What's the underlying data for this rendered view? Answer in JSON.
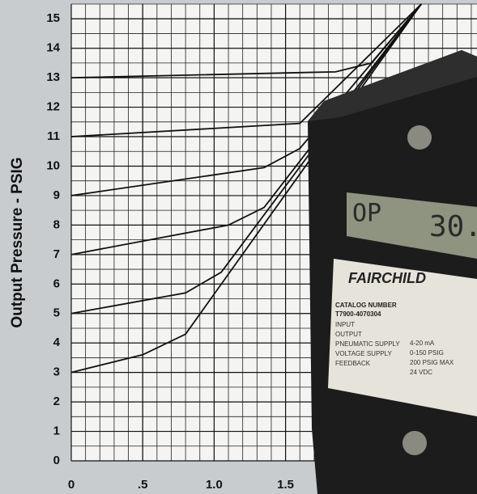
{
  "chart_data": {
    "type": "line",
    "y_label": "Output Pressure - PSIG",
    "xlim": [
      0,
      2.84
    ],
    "ylim": [
      0,
      15.5
    ],
    "xticks": [
      0,
      {
        "value": 0.5,
        "label": ".5"
      },
      {
        "value": 1,
        "label": "1.0"
      },
      {
        "value": 1.5,
        "label": "1.5"
      }
    ],
    "yticks": [
      0,
      1,
      2,
      3,
      4,
      5,
      6,
      7,
      8,
      9,
      10,
      11,
      12,
      13,
      14,
      15
    ],
    "grid": true,
    "x_minor_step": 0.1,
    "y_minor_step": 0.5,
    "series": [
      {
        "color": "#111111",
        "x": [
          0,
          1.85,
          2.1,
          2.45
        ],
        "values": [
          13,
          13.2,
          13.5,
          15.5
        ]
      },
      {
        "color": "#111111",
        "x": [
          0,
          1.6,
          2.45
        ],
        "values": [
          11,
          11.45,
          15.5
        ]
      },
      {
        "color": "#111111",
        "x": [
          0,
          1.35,
          1.6,
          2.45
        ],
        "values": [
          9,
          9.95,
          10.6,
          15.5
        ]
      },
      {
        "color": "#111111",
        "x": [
          0,
          1.1,
          1.35,
          2.45
        ],
        "values": [
          7,
          8,
          8.6,
          15.5
        ]
      },
      {
        "color": "#111111",
        "x": [
          0,
          0.8,
          1.05,
          2.45
        ],
        "values": [
          5,
          5.7,
          6.4,
          15.5
        ]
      },
      {
        "color": "#111111",
        "x": [
          0,
          0.5,
          0.8,
          2.45
        ],
        "values": [
          3,
          3.6,
          4.3,
          15.5
        ]
      }
    ]
  },
  "device": {
    "display": [
      "OP",
      "30."
    ],
    "brand": "FAIRCHILD",
    "catalog_title": "CATALOG NUMBER",
    "catalog_number": "T7900-4070304",
    "specs": [
      [
        "INPUT",
        ""
      ],
      [
        "OUTPUT",
        "4-20 mA"
      ],
      [
        "PNEUMATIC SUPPLY",
        "0-150 PSIG"
      ],
      [
        "VOLTAGE SUPPLY",
        "200 PSIG MAX"
      ],
      [
        "FEEDBACK",
        "24 VDC"
      ]
    ]
  }
}
